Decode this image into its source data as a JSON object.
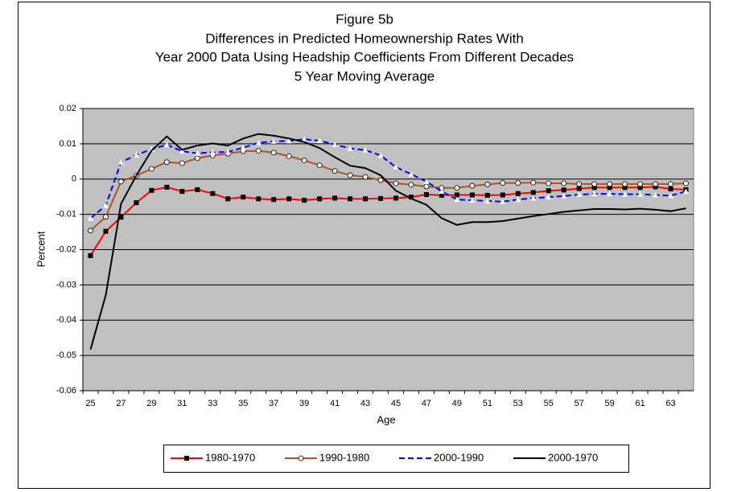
{
  "chart_data": {
    "type": "line",
    "title": [
      "Figure 5b",
      "Differences in Predicted Homeownership Rates With",
      "Year 2000 Data Using Headship Coefficients From Different Decades",
      "5 Year Moving Average"
    ],
    "x_label": "Age",
    "y_label": "Percent",
    "categories": [
      "25",
      null,
      "27",
      null,
      "29",
      null,
      "31",
      null,
      "33",
      null,
      "35",
      null,
      "37",
      null,
      "39",
      null,
      "41",
      null,
      "43",
      null,
      "45",
      null,
      "47",
      null,
      "49",
      null,
      "51",
      null,
      "53",
      null,
      "55",
      null,
      "57",
      null,
      "59",
      null,
      "61",
      null,
      "63",
      null
    ],
    "ylim": [
      -0.06,
      0.02
    ],
    "yticks": [
      -0.06,
      -0.05,
      -0.04,
      -0.03,
      -0.02,
      -0.01,
      0,
      0.01,
      0.02
    ],
    "grid": true,
    "plot_background": "#c0c0c0",
    "legend": "bottom",
    "series": [
      {
        "name": "1980-1970",
        "color": "#ff0000",
        "marker": "square",
        "dashed": false,
        "values": [
          -0.0217,
          -0.0148,
          -0.0108,
          -0.0067,
          -0.0032,
          -0.0023,
          -0.0035,
          -0.003,
          -0.0041,
          -0.0056,
          -0.0051,
          -0.0056,
          -0.0058,
          -0.0056,
          -0.006,
          -0.0056,
          -0.0054,
          -0.0056,
          -0.0056,
          -0.0055,
          -0.0054,
          -0.0051,
          -0.0044,
          -0.0046,
          -0.0045,
          -0.0045,
          -0.0046,
          -0.0045,
          -0.0041,
          -0.0038,
          -0.0033,
          -0.0031,
          -0.0027,
          -0.0024,
          -0.0024,
          -0.0024,
          -0.0024,
          -0.0022,
          -0.0028,
          -0.003
        ]
      },
      {
        "name": "1990-1980",
        "color": "#b5521e",
        "marker": "circle",
        "dashed": false,
        "values": [
          -0.0146,
          -0.0107,
          -0.0007,
          0.001,
          0.0029,
          0.0048,
          0.0045,
          0.0059,
          0.0067,
          0.0072,
          0.0079,
          0.008,
          0.0075,
          0.0065,
          0.0053,
          0.0039,
          0.0023,
          0.0011,
          0.0006,
          -0.0003,
          -0.0012,
          -0.0016,
          -0.0021,
          -0.0025,
          -0.0025,
          -0.0019,
          -0.0015,
          -0.0011,
          -0.0011,
          -0.001,
          -0.0012,
          -0.0012,
          -0.0014,
          -0.0014,
          -0.0014,
          -0.0014,
          -0.0014,
          -0.0014,
          -0.0014,
          -0.0012
        ]
      },
      {
        "name": "2000-1990",
        "color": "#0000ff",
        "marker": "triangle",
        "dashed": true,
        "values": [
          -0.0111,
          -0.0075,
          0.0048,
          0.0068,
          0.0085,
          0.0097,
          0.0079,
          0.0073,
          0.0076,
          0.0077,
          0.0089,
          0.0103,
          0.0107,
          0.0108,
          0.0113,
          0.0109,
          0.0098,
          0.0087,
          0.0082,
          0.0067,
          0.0034,
          0.0014,
          -0.0007,
          -0.0035,
          -0.0058,
          -0.006,
          -0.0062,
          -0.0064,
          -0.0058,
          -0.0054,
          -0.0051,
          -0.0048,
          -0.0044,
          -0.0042,
          -0.0042,
          -0.0043,
          -0.0043,
          -0.0045,
          -0.0047,
          -0.0035
        ]
      },
      {
        "name": "2000-1970",
        "color": "#000000",
        "marker": null,
        "dashed": false,
        "values": [
          -0.0483,
          -0.0329,
          -0.007,
          0.001,
          0.0081,
          0.0121,
          0.0083,
          0.0095,
          0.0101,
          0.0095,
          0.0115,
          0.0128,
          0.0123,
          0.0115,
          0.0105,
          0.0088,
          0.0062,
          0.0038,
          0.0031,
          0.0011,
          -0.0033,
          -0.0055,
          -0.0073,
          -0.0111,
          -0.013,
          -0.0122,
          -0.0122,
          -0.0119,
          -0.0112,
          -0.0105,
          -0.0099,
          -0.0093,
          -0.0089,
          -0.0085,
          -0.0085,
          -0.0086,
          -0.0084,
          -0.0087,
          -0.0091,
          -0.0083
        ]
      }
    ]
  }
}
